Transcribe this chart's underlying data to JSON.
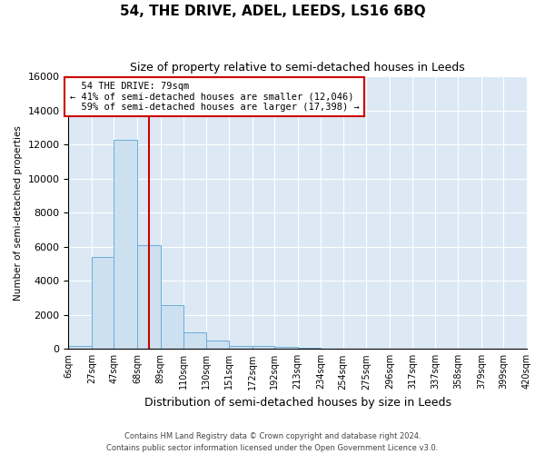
{
  "title": "54, THE DRIVE, ADEL, LEEDS, LS16 6BQ",
  "subtitle": "Size of property relative to semi-detached houses in Leeds",
  "xlabel": "Distribution of semi-detached houses by size in Leeds",
  "ylabel": "Number of semi-detached properties",
  "footer_line1": "Contains HM Land Registry data © Crown copyright and database right 2024.",
  "footer_line2": "Contains public sector information licensed under the Open Government Licence v3.0.",
  "property_label": "54 THE DRIVE: 79sqm",
  "pct_smaller": "41% of semi-detached houses are smaller (12,046)",
  "pct_larger": "59% of semi-detached houses are larger (17,398)",
  "property_sqm": 79,
  "bin_labels": [
    "6sqm",
    "27sqm",
    "47sqm",
    "68sqm",
    "89sqm",
    "110sqm",
    "130sqm",
    "151sqm",
    "172sqm",
    "192sqm",
    "213sqm",
    "234sqm",
    "254sqm",
    "275sqm",
    "296sqm",
    "317sqm",
    "337sqm",
    "358sqm",
    "379sqm",
    "399sqm",
    "420sqm"
  ],
  "bin_edges": [
    6,
    27,
    47,
    68,
    89,
    110,
    130,
    151,
    172,
    192,
    213,
    234,
    254,
    275,
    296,
    317,
    337,
    358,
    379,
    399,
    420
  ],
  "bar_values": [
    200,
    5400,
    12300,
    6100,
    2600,
    1000,
    500,
    200,
    150,
    100,
    60,
    0,
    0,
    0,
    0,
    0,
    0,
    0,
    0,
    0
  ],
  "bar_color": "#cde0f0",
  "bar_edge_color": "#6aaed6",
  "vline_color": "#cc0000",
  "vline_sqm": 79,
  "ylim": [
    0,
    16000
  ],
  "yticks": [
    0,
    2000,
    4000,
    6000,
    8000,
    10000,
    12000,
    14000,
    16000
  ],
  "background_color": "#dce9f5",
  "grid_color": "#ffffff",
  "annotation_box_color": "#ffffff",
  "annotation_box_edge": "#cc0000",
  "title_fontsize": 11,
  "subtitle_fontsize": 9
}
